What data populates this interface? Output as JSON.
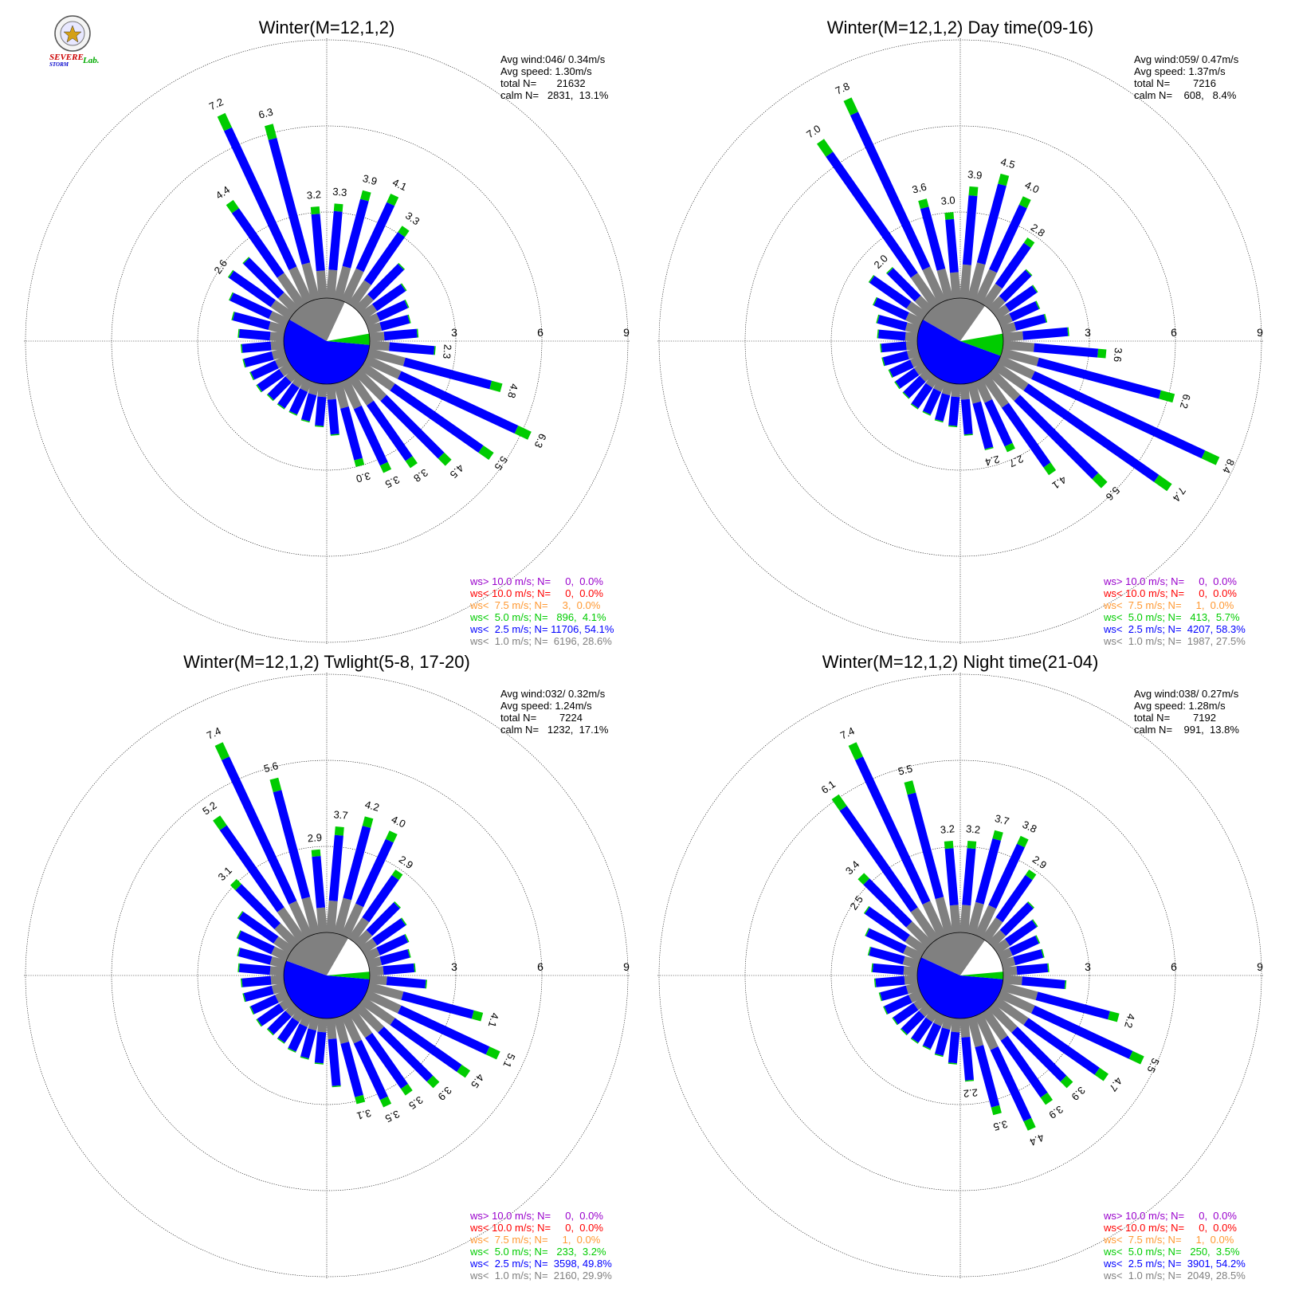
{
  "logo": {
    "brand_text_1": "SEVERE",
    "brand_text_2": "STORM",
    "brand_text_3": "Lab."
  },
  "colors": {
    "calm": "#808080",
    "lt1": "#808080",
    "lt2_5": "#0000ff",
    "lt5": "#00cc00",
    "lt7_5": "#ff9933",
    "lt10": "#ff0000",
    "gt10": "#9900cc"
  },
  "ring_labels": [
    "3",
    "6",
    "9"
  ],
  "chart_data": [
    {
      "type": "polar-bar",
      "title": "Winter(M=12,1,2)",
      "stats": [
        "Avg wind:046/ 0.34m/s",
        "Avg speed: 1.30m/s",
        "total N=       21632",
        "calm N=   2831,  13.1%"
      ],
      "calm_pct": 13.1,
      "legend": [
        {
          "text": "ws> 10.0 m/s; N=     0,  0.0%",
          "color": "#9900cc"
        },
        {
          "text": "ws< 10.0 m/s; N=     0,  0.0%",
          "color": "#ff0000"
        },
        {
          "text": "ws<  7.5 m/s; N=     3,  0.0%",
          "color": "#ff9933"
        },
        {
          "text": "ws<  5.0 m/s; N=   896,  4.1%",
          "color": "#00cc00"
        },
        {
          "text": "ws<  2.5 m/s; N= 11706, 54.1%",
          "color": "#0000ff"
        },
        {
          "text": "ws<  1.0 m/s; N=  6196, 28.6%",
          "color": "#808080"
        }
      ],
      "pie": {
        "gray": [
          300,
          25
        ],
        "white": [
          25,
          80
        ],
        "green": [
          80,
          95
        ],
        "blue": [
          95,
          300
        ]
      },
      "bars": [
        {
          "dir": 335,
          "total": 7.2,
          "label": "7.2"
        },
        {
          "dir": 345,
          "total": 6.3,
          "label": "6.3"
        },
        {
          "dir": 355,
          "total": 3.2,
          "label": "3.2"
        },
        {
          "dir": 5,
          "total": 3.3,
          "label": "3.3"
        },
        {
          "dir": 15,
          "total": 3.9,
          "label": "3.9"
        },
        {
          "dir": 25,
          "total": 4.1,
          "label": "4.1"
        },
        {
          "dir": 35,
          "total": 3.3,
          "label": "3.3"
        },
        {
          "dir": 45,
          "total": 2.2
        },
        {
          "dir": 55,
          "total": 1.8
        },
        {
          "dir": 65,
          "total": 1.6
        },
        {
          "dir": 75,
          "total": 1.5
        },
        {
          "dir": 85,
          "total": 1.7
        },
        {
          "dir": 95,
          "total": 2.3,
          "label": "2.3"
        },
        {
          "dir": 105,
          "total": 4.8,
          "label": "4.8"
        },
        {
          "dir": 115,
          "total": 6.3,
          "label": "6.3"
        },
        {
          "dir": 125,
          "total": 5.5,
          "label": "5.5"
        },
        {
          "dir": 135,
          "total": 4.5,
          "label": "4.5"
        },
        {
          "dir": 145,
          "total": 3.8,
          "label": "3.8"
        },
        {
          "dir": 155,
          "total": 3.5,
          "label": "3.5"
        },
        {
          "dir": 165,
          "total": 3.0,
          "label": "3.0"
        },
        {
          "dir": 175,
          "total": 1.8
        },
        {
          "dir": 185,
          "total": 1.5
        },
        {
          "dir": 195,
          "total": 1.4
        },
        {
          "dir": 205,
          "total": 1.3
        },
        {
          "dir": 215,
          "total": 1.3
        },
        {
          "dir": 225,
          "total": 1.3
        },
        {
          "dir": 235,
          "total": 1.4
        },
        {
          "dir": 245,
          "total": 1.4
        },
        {
          "dir": 255,
          "total": 1.5
        },
        {
          "dir": 265,
          "total": 1.5
        },
        {
          "dir": 275,
          "total": 1.6
        },
        {
          "dir": 285,
          "total": 1.9
        },
        {
          "dir": 295,
          "total": 2.2
        },
        {
          "dir": 305,
          "total": 2.6,
          "label": "2.6"
        },
        {
          "dir": 315,
          "total": 2.5
        },
        {
          "dir": 325,
          "total": 4.4,
          "label": "4.4"
        }
      ]
    },
    {
      "type": "polar-bar",
      "title": "Winter(M=12,1,2) Day time(09-16)",
      "stats": [
        "Avg wind:059/ 0.47m/s",
        "Avg speed: 1.37m/s",
        "total N=        7216",
        "calm N=    608,   8.4%"
      ],
      "calm_pct": 8.4,
      "legend": [
        {
          "text": "ws> 10.0 m/s; N=     0,  0.0%",
          "color": "#9900cc"
        },
        {
          "text": "ws< 10.0 m/s; N=     0,  0.0%",
          "color": "#ff0000"
        },
        {
          "text": "ws<  7.5 m/s; N=     1,  0.0%",
          "color": "#ff9933"
        },
        {
          "text": "ws<  5.0 m/s; N=   413,  5.7%",
          "color": "#00cc00"
        },
        {
          "text": "ws<  2.5 m/s; N=  4207, 58.3%",
          "color": "#0000ff"
        },
        {
          "text": "ws<  1.0 m/s; N=  1987, 27.5%",
          "color": "#808080"
        }
      ],
      "pie": {
        "gray": [
          300,
          35
        ],
        "white": [
          35,
          80
        ],
        "green": [
          80,
          110
        ],
        "blue": [
          110,
          300
        ]
      },
      "bars": [
        {
          "dir": 325,
          "total": 7.0,
          "label": "7.0"
        },
        {
          "dir": 335,
          "total": 7.8,
          "label": "7.8"
        },
        {
          "dir": 345,
          "total": 3.6,
          "label": "3.6"
        },
        {
          "dir": 355,
          "total": 3.0,
          "label": "3.0"
        },
        {
          "dir": 5,
          "total": 3.9,
          "label": "3.9"
        },
        {
          "dir": 15,
          "total": 4.5,
          "label": "4.5"
        },
        {
          "dir": 25,
          "total": 4.0,
          "label": "4.0"
        },
        {
          "dir": 35,
          "total": 2.8,
          "label": "2.8"
        },
        {
          "dir": 45,
          "total": 1.9
        },
        {
          "dir": 55,
          "total": 1.7
        },
        {
          "dir": 65,
          "total": 1.5
        },
        {
          "dir": 75,
          "total": 1.6
        },
        {
          "dir": 85,
          "total": 2.3
        },
        {
          "dir": 95,
          "total": 3.6,
          "label": "3.6"
        },
        {
          "dir": 105,
          "total": 6.2,
          "label": "6.2"
        },
        {
          "dir": 115,
          "total": 8.4,
          "label": "8.4"
        },
        {
          "dir": 125,
          "total": 7.4,
          "label": "7.4"
        },
        {
          "dir": 135,
          "total": 5.6,
          "label": "5.6"
        },
        {
          "dir": 145,
          "total": 4.1,
          "label": "4.1"
        },
        {
          "dir": 155,
          "total": 2.7,
          "label": "2.7"
        },
        {
          "dir": 165,
          "total": 2.4,
          "label": "2.4"
        },
        {
          "dir": 175,
          "total": 1.8
        },
        {
          "dir": 185,
          "total": 1.5
        },
        {
          "dir": 195,
          "total": 1.4
        },
        {
          "dir": 205,
          "total": 1.3
        },
        {
          "dir": 215,
          "total": 1.3
        },
        {
          "dir": 225,
          "total": 1.2
        },
        {
          "dir": 235,
          "total": 1.2
        },
        {
          "dir": 245,
          "total": 1.2
        },
        {
          "dir": 255,
          "total": 1.3
        },
        {
          "dir": 265,
          "total": 1.3
        },
        {
          "dir": 275,
          "total": 1.4
        },
        {
          "dir": 285,
          "total": 1.5
        },
        {
          "dir": 295,
          "total": 1.8
        },
        {
          "dir": 305,
          "total": 2.3
        },
        {
          "dir": 315,
          "total": 2.0,
          "label": "2.0"
        }
      ]
    },
    {
      "type": "polar-bar",
      "title": "Winter(M=12,1,2) Twlight(5-8, 17-20)",
      "stats": [
        "Avg wind:032/ 0.32m/s",
        "Avg speed: 1.24m/s",
        "total N=        7224",
        "calm N=   1232,  17.1%"
      ],
      "calm_pct": 17.1,
      "legend": [
        {
          "text": "ws> 10.0 m/s; N=     0,  0.0%",
          "color": "#9900cc"
        },
        {
          "text": "ws< 10.0 m/s; N=     0,  0.0%",
          "color": "#ff0000"
        },
        {
          "text": "ws<  7.5 m/s; N=     1,  0.0%",
          "color": "#ff9933"
        },
        {
          "text": "ws<  5.0 m/s; N=   233,  3.2%",
          "color": "#00cc00"
        },
        {
          "text": "ws<  2.5 m/s; N=  3598, 49.8%",
          "color": "#0000ff"
        },
        {
          "text": "ws<  1.0 m/s; N=  2160, 29.9%",
          "color": "#808080"
        }
      ],
      "pie": {
        "gray": [
          290,
          30
        ],
        "white": [
          30,
          85
        ],
        "green": [
          85,
          95
        ],
        "blue": [
          95,
          290
        ]
      },
      "bars": [
        {
          "dir": 325,
          "total": 5.2,
          "label": "5.2"
        },
        {
          "dir": 335,
          "total": 7.4,
          "label": "7.4"
        },
        {
          "dir": 345,
          "total": 5.6,
          "label": "5.6"
        },
        {
          "dir": 355,
          "total": 2.9,
          "label": "2.9"
        },
        {
          "dir": 5,
          "total": 3.7,
          "label": "3.7"
        },
        {
          "dir": 15,
          "total": 4.2,
          "label": "4.2"
        },
        {
          "dir": 25,
          "total": 4.0,
          "label": "4.0"
        },
        {
          "dir": 35,
          "total": 2.9,
          "label": "2.9"
        },
        {
          "dir": 45,
          "total": 2.0
        },
        {
          "dir": 55,
          "total": 1.8
        },
        {
          "dir": 65,
          "total": 1.6
        },
        {
          "dir": 75,
          "total": 1.5
        },
        {
          "dir": 85,
          "total": 1.6
        },
        {
          "dir": 95,
          "total": 2.0
        },
        {
          "dir": 105,
          "total": 4.1,
          "label": "4.1"
        },
        {
          "dir": 115,
          "total": 5.1,
          "label": "5.1"
        },
        {
          "dir": 125,
          "total": 4.5,
          "label": "4.5"
        },
        {
          "dir": 135,
          "total": 3.9,
          "label": "3.9"
        },
        {
          "dir": 145,
          "total": 3.5,
          "label": "3.5"
        },
        {
          "dir": 155,
          "total": 3.5,
          "label": "3.5"
        },
        {
          "dir": 165,
          "total": 3.1,
          "label": "3.1"
        },
        {
          "dir": 175,
          "total": 2.4
        },
        {
          "dir": 185,
          "total": 1.6
        },
        {
          "dir": 195,
          "total": 1.5
        },
        {
          "dir": 205,
          "total": 1.4
        },
        {
          "dir": 215,
          "total": 1.3
        },
        {
          "dir": 225,
          "total": 1.3
        },
        {
          "dir": 235,
          "total": 1.4
        },
        {
          "dir": 245,
          "total": 1.4
        },
        {
          "dir": 255,
          "total": 1.5
        },
        {
          "dir": 265,
          "total": 1.5
        },
        {
          "dir": 275,
          "total": 1.6
        },
        {
          "dir": 285,
          "total": 1.7
        },
        {
          "dir": 295,
          "total": 1.9
        },
        {
          "dir": 305,
          "total": 2.2
        },
        {
          "dir": 315,
          "total": 3.1,
          "label": "3.1"
        }
      ]
    },
    {
      "type": "polar-bar",
      "title": "Winter(M=12,1,2) Night time(21-04)",
      "stats": [
        "Avg wind:038/ 0.27m/s",
        "Avg speed: 1.28m/s",
        "total N=        7192",
        "calm N=    991,  13.8%"
      ],
      "calm_pct": 13.8,
      "legend": [
        {
          "text": "ws> 10.0 m/s; N=     0,  0.0%",
          "color": "#9900cc"
        },
        {
          "text": "ws< 10.0 m/s; N=     0,  0.0%",
          "color": "#ff0000"
        },
        {
          "text": "ws<  7.5 m/s; N=     1,  0.0%",
          "color": "#ff9933"
        },
        {
          "text": "ws<  5.0 m/s; N=   250,  3.5%",
          "color": "#00cc00"
        },
        {
          "text": "ws<  2.5 m/s; N=  3901, 54.2%",
          "color": "#0000ff"
        },
        {
          "text": "ws<  1.0 m/s; N=  2049, 28.5%",
          "color": "#808080"
        }
      ],
      "pie": {
        "gray": [
          295,
          35
        ],
        "white": [
          35,
          85
        ],
        "green": [
          85,
          95
        ],
        "blue": [
          95,
          295
        ]
      },
      "bars": [
        {
          "dir": 305,
          "total": 2.5,
          "label": "2.5"
        },
        {
          "dir": 315,
          "total": 3.4,
          "label": "3.4"
        },
        {
          "dir": 325,
          "total": 6.1,
          "label": "6.1"
        },
        {
          "dir": 335,
          "total": 7.4,
          "label": "7.4"
        },
        {
          "dir": 345,
          "total": 5.5,
          "label": "5.5"
        },
        {
          "dir": 355,
          "total": 3.2,
          "label": "3.2"
        },
        {
          "dir": 5,
          "total": 3.2,
          "label": "3.2"
        },
        {
          "dir": 15,
          "total": 3.7,
          "label": "3.7"
        },
        {
          "dir": 25,
          "total": 3.8,
          "label": "3.8"
        },
        {
          "dir": 35,
          "total": 2.9,
          "label": "2.9"
        },
        {
          "dir": 45,
          "total": 2.0
        },
        {
          "dir": 55,
          "total": 1.7
        },
        {
          "dir": 65,
          "total": 1.5
        },
        {
          "dir": 75,
          "total": 1.5
        },
        {
          "dir": 85,
          "total": 1.6
        },
        {
          "dir": 95,
          "total": 2.2
        },
        {
          "dir": 105,
          "total": 4.2,
          "label": "4.2"
        },
        {
          "dir": 115,
          "total": 5.5,
          "label": "5.5"
        },
        {
          "dir": 125,
          "total": 4.7,
          "label": "4.7"
        },
        {
          "dir": 135,
          "total": 3.9,
          "label": "3.9"
        },
        {
          "dir": 145,
          "total": 3.9,
          "label": "3.9"
        },
        {
          "dir": 155,
          "total": 4.4,
          "label": "4.4"
        },
        {
          "dir": 165,
          "total": 3.5,
          "label": "3.5"
        },
        {
          "dir": 175,
          "total": 2.2,
          "label": "2.2"
        },
        {
          "dir": 185,
          "total": 1.6
        },
        {
          "dir": 195,
          "total": 1.4
        },
        {
          "dir": 205,
          "total": 1.3
        },
        {
          "dir": 215,
          "total": 1.3
        },
        {
          "dir": 225,
          "total": 1.3
        },
        {
          "dir": 235,
          "total": 1.3
        },
        {
          "dir": 245,
          "total": 1.4
        },
        {
          "dir": 255,
          "total": 1.4
        },
        {
          "dir": 265,
          "total": 1.5
        },
        {
          "dir": 275,
          "total": 1.6
        },
        {
          "dir": 285,
          "total": 1.8
        },
        {
          "dir": 295,
          "total": 2.1
        }
      ]
    }
  ]
}
